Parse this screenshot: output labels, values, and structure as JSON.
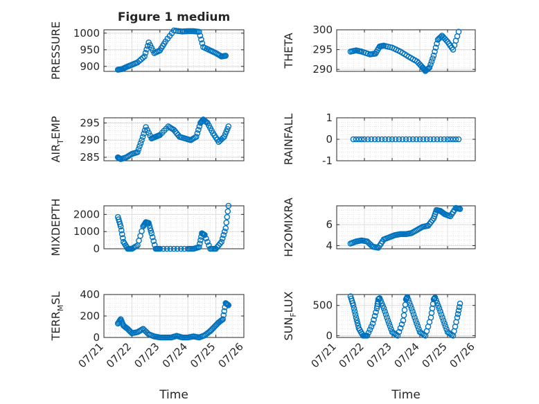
{
  "figure": {
    "title": "Figure 1 medium",
    "marker_color": "#0072BD"
  },
  "chart_data": [
    {
      "type": "scatter",
      "marker": "circle-open",
      "title": "Figure 1 medium",
      "ylabel": "PRESSURE",
      "xlabel": "",
      "xlim": [
        0,
        5
      ],
      "x_tick_labels": [
        "07/21",
        "07/22",
        "07/23",
        "07/24",
        "07/25",
        "07/26"
      ],
      "show_x_tick_labels": false,
      "ylim": [
        885,
        1010
      ],
      "yticks": [
        900,
        950,
        1000
      ],
      "ytick_labels": [
        "900",
        "950",
        "1000"
      ],
      "x": [
        0.5,
        0.65,
        0.8,
        1.0,
        1.2,
        1.45,
        1.6,
        1.8,
        2.0,
        2.2,
        2.5,
        2.8,
        3.0,
        3.2,
        3.4,
        3.55,
        3.8,
        4.0,
        4.2,
        4.35
      ],
      "y": [
        890,
        892,
        898,
        905,
        912,
        930,
        972,
        940,
        948,
        975,
        1008,
        1005,
        1006,
        1006,
        1004,
        958,
        948,
        940,
        930,
        932
      ]
    },
    {
      "type": "scatter",
      "marker": "circle-open",
      "ylabel": "THETA",
      "xlim": [
        0,
        5
      ],
      "show_x_tick_labels": false,
      "ylim": [
        289.5,
        300
      ],
      "yticks": [
        290,
        295,
        300
      ],
      "ytick_labels": [
        "290",
        "295",
        "300"
      ],
      "x": [
        0.5,
        0.7,
        0.9,
        1.2,
        1.4,
        1.55,
        1.7,
        2.0,
        2.3,
        2.6,
        2.9,
        3.1,
        3.2,
        3.35,
        3.5,
        3.65,
        3.8,
        4.0,
        4.2,
        4.4
      ],
      "y": [
        294.5,
        294.8,
        294.5,
        293.8,
        294.0,
        295.8,
        296.0,
        295.5,
        294.5,
        293.2,
        292.0,
        290.5,
        289.6,
        290.5,
        293.5,
        297.5,
        298.5,
        297,
        295,
        299.5
      ]
    },
    {
      "type": "scatter",
      "marker": "circle-open",
      "ylabel": "AIR_TEMP",
      "xlim": [
        0,
        5
      ],
      "show_x_tick_labels": false,
      "ylim": [
        284,
        296.5
      ],
      "yticks": [
        285,
        290,
        295
      ],
      "ytick_labels": [
        "285",
        "290",
        "295"
      ],
      "x": [
        0.5,
        0.6,
        0.8,
        1.0,
        1.2,
        1.35,
        1.5,
        1.7,
        1.85,
        2.0,
        2.3,
        2.5,
        2.7,
        2.9,
        3.1,
        3.3,
        3.45,
        3.55,
        3.7,
        3.9,
        4.1,
        4.3,
        4.45
      ],
      "y": [
        285,
        284.5,
        285,
        286,
        286.5,
        290,
        293.8,
        290.5,
        291,
        291.5,
        294,
        293,
        291,
        290.5,
        290,
        291,
        295,
        296,
        295,
        292,
        289.5,
        291,
        294
      ]
    },
    {
      "type": "scatter",
      "marker": "circle-open",
      "ylabel": "RAINFALL",
      "xlim": [
        0,
        5
      ],
      "show_x_tick_labels": false,
      "ylim": [
        -1,
        1
      ],
      "yticks": [
        -1,
        0,
        1
      ],
      "ytick_labels": [
        "-1",
        "0",
        "1"
      ],
      "x": [
        0.6,
        1.0,
        1.5,
        2.0,
        2.5,
        3.0,
        3.5,
        4.0,
        4.4
      ],
      "y": [
        0,
        0,
        0,
        0,
        0,
        0,
        0,
        0,
        0
      ]
    },
    {
      "type": "scatter",
      "marker": "circle-open",
      "ylabel": "MIXDEPTH",
      "xlim": [
        0,
        5
      ],
      "show_x_tick_labels": false,
      "ylim": [
        0,
        2500
      ],
      "yticks": [
        0,
        1000,
        2000
      ],
      "ytick_labels": [
        "0",
        "1000",
        "2000"
      ],
      "x": [
        0.5,
        0.6,
        0.7,
        0.85,
        1.0,
        1.2,
        1.4,
        1.5,
        1.6,
        1.7,
        1.85,
        2.0,
        2.5,
        3.0,
        3.2,
        3.4,
        3.5,
        3.6,
        3.8,
        4.0,
        4.2,
        4.35,
        4.45
      ],
      "y": [
        1850,
        1300,
        400,
        0,
        0,
        200,
        1300,
        1550,
        1500,
        900,
        0,
        0,
        0,
        0,
        0,
        100,
        900,
        800,
        0,
        0,
        400,
        1200,
        2500
      ]
    },
    {
      "type": "scatter",
      "marker": "circle-open",
      "ylabel": "H2OMIXRA",
      "xlim": [
        0,
        5
      ],
      "show_x_tick_labels": false,
      "ylim": [
        3.7,
        7.8
      ],
      "yticks": [
        4,
        6
      ],
      "ytick_labels": [
        "4",
        "6"
      ],
      "x": [
        0.5,
        0.7,
        0.9,
        1.1,
        1.3,
        1.5,
        1.7,
        1.9,
        2.1,
        2.3,
        2.5,
        2.7,
        2.9,
        3.1,
        3.3,
        3.5,
        3.6,
        3.75,
        3.9,
        4.1,
        4.3,
        4.45
      ],
      "y": [
        4.2,
        4.4,
        4.5,
        4.4,
        3.9,
        3.8,
        4.6,
        4.8,
        5.0,
        5.1,
        5.1,
        5.2,
        5.5,
        5.8,
        5.9,
        6.6,
        7.4,
        7.3,
        7.0,
        6.8,
        7.6,
        7.5
      ]
    },
    {
      "type": "scatter",
      "marker": "circle-open",
      "ylabel": "TERR_MSL",
      "xlabel": "Time",
      "xlim": [
        0,
        5
      ],
      "x_tick_labels": [
        "07/21",
        "07/22",
        "07/23",
        "07/24",
        "07/25",
        "07/26"
      ],
      "show_x_tick_labels": true,
      "ylim": [
        0,
        400
      ],
      "yticks": [
        0,
        200,
        400
      ],
      "ytick_labels": [
        "0",
        "200",
        "400"
      ],
      "x": [
        0.5,
        0.6,
        0.7,
        0.85,
        1.0,
        1.2,
        1.4,
        1.6,
        1.8,
        2.0,
        2.2,
        2.4,
        2.6,
        2.8,
        3.0,
        3.2,
        3.4,
        3.6,
        3.8,
        3.95,
        4.1,
        4.25,
        4.35,
        4.45
      ],
      "y": [
        130,
        170,
        110,
        80,
        40,
        50,
        80,
        30,
        10,
        0,
        0,
        0,
        15,
        0,
        0,
        10,
        0,
        20,
        60,
        100,
        140,
        170,
        320,
        300
      ]
    },
    {
      "type": "scatter",
      "marker": "circle-open",
      "ylabel": "SUN_FLUX",
      "xlabel": "Time",
      "xlim": [
        0,
        5
      ],
      "x_tick_labels": [
        "07/21",
        "07/22",
        "07/23",
        "07/24",
        "07/25",
        "07/26"
      ],
      "show_x_tick_labels": true,
      "ylim": [
        -30,
        680
      ],
      "yticks": [
        0,
        500
      ],
      "ytick_labels": [
        "0",
        "500"
      ],
      "x": [
        0.5,
        0.6,
        0.7,
        0.8,
        0.95,
        1.1,
        1.3,
        1.45,
        1.5,
        1.55,
        1.7,
        1.85,
        2.0,
        2.2,
        2.4,
        2.5,
        2.55,
        2.7,
        2.85,
        3.0,
        3.2,
        3.4,
        3.5,
        3.55,
        3.7,
        3.85,
        4.0,
        4.2,
        4.35,
        4.45
      ],
      "y": [
        650,
        500,
        300,
        120,
        0,
        0,
        200,
        450,
        600,
        620,
        450,
        250,
        60,
        0,
        250,
        600,
        640,
        450,
        250,
        60,
        0,
        300,
        600,
        630,
        450,
        250,
        60,
        0,
        300,
        530
      ]
    }
  ]
}
